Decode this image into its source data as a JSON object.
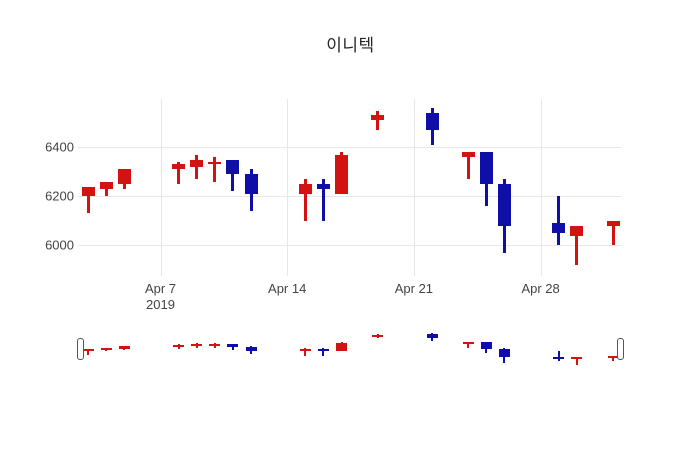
{
  "title": "이니텍",
  "colors": {
    "up": "#d31212",
    "down": "#0f0fa8",
    "grid": "#e7e7e7",
    "tick_label": "#444444",
    "title_color": "#262626",
    "background": "#ffffff",
    "slider_handle_border": "#555555"
  },
  "chart_data": {
    "type": "candlestick",
    "title": "이니텍",
    "legend": "none",
    "grid": true,
    "ylim": [
      5875,
      6597
    ],
    "y_ticks": [
      {
        "value": 6400,
        "label": "6400"
      },
      {
        "value": 6200,
        "label": "6200"
      },
      {
        "value": 6000,
        "label": "6000"
      }
    ],
    "x_ticks": [
      {
        "date": "2019-04-07",
        "label": "Apr 7",
        "sublabel": "2019"
      },
      {
        "date": "2019-04-14",
        "label": "Apr 14"
      },
      {
        "date": "2019-04-21",
        "label": "Apr 21"
      },
      {
        "date": "2019-04-28",
        "label": "Apr 28"
      }
    ],
    "up_means": "close >= open (red)",
    "down_means": "close < open (blue)",
    "candles": [
      {
        "date": "2019-04-03",
        "open": 6200,
        "high": 6240,
        "low": 6130,
        "close": 6240
      },
      {
        "date": "2019-04-04",
        "open": 6230,
        "high": 6260,
        "low": 6200,
        "close": 6260
      },
      {
        "date": "2019-04-05",
        "open": 6250,
        "high": 6310,
        "low": 6230,
        "close": 6310
      },
      {
        "date": "2019-04-08",
        "open": 6310,
        "high": 6340,
        "low": 6250,
        "close": 6330
      },
      {
        "date": "2019-04-09",
        "open": 6320,
        "high": 6370,
        "low": 6270,
        "close": 6350
      },
      {
        "date": "2019-04-10",
        "open": 6330,
        "high": 6360,
        "low": 6260,
        "close": 6340
      },
      {
        "date": "2019-04-11",
        "open": 6350,
        "high": 6350,
        "low": 6220,
        "close": 6290
      },
      {
        "date": "2019-04-12",
        "open": 6290,
        "high": 6310,
        "low": 6140,
        "close": 6210
      },
      {
        "date": "2019-04-15",
        "open": 6210,
        "high": 6270,
        "low": 6100,
        "close": 6250
      },
      {
        "date": "2019-04-16",
        "open": 6250,
        "high": 6270,
        "low": 6100,
        "close": 6230
      },
      {
        "date": "2019-04-17",
        "open": 6210,
        "high": 6380,
        "low": 6210,
        "close": 6370
      },
      {
        "date": "2019-04-19",
        "open": 6510,
        "high": 6550,
        "low": 6470,
        "close": 6530
      },
      {
        "date": "2019-04-22",
        "open": 6540,
        "high": 6560,
        "low": 6410,
        "close": 6470
      },
      {
        "date": "2019-04-24",
        "open": 6360,
        "high": 6380,
        "low": 6270,
        "close": 6380
      },
      {
        "date": "2019-04-25",
        "open": 6380,
        "high": 6380,
        "low": 6160,
        "close": 6250
      },
      {
        "date": "2019-04-26",
        "open": 6250,
        "high": 6270,
        "low": 5970,
        "close": 6080
      },
      {
        "date": "2019-04-29",
        "open": 6090,
        "high": 6200,
        "low": 6000,
        "close": 6050
      },
      {
        "date": "2019-04-30",
        "open": 6040,
        "high": 6080,
        "low": 5920,
        "close": 6080
      },
      {
        "date": "2019-05-02",
        "open": 6080,
        "high": 6100,
        "low": 6000,
        "close": 6100
      }
    ],
    "rangeslider": {
      "visible": true,
      "handles": 2
    }
  }
}
